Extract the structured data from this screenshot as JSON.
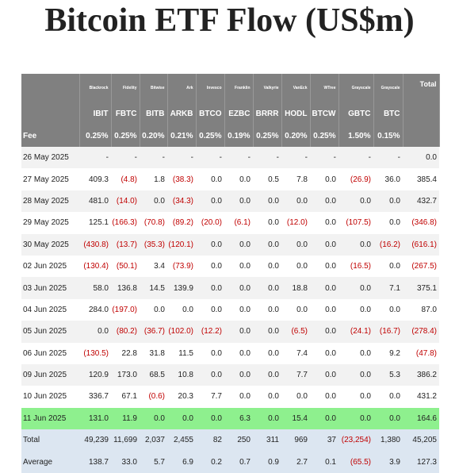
{
  "title": "Bitcoin ETF Flow (US$m)",
  "table": {
    "issuers": [
      "Blackrock",
      "Fidelity",
      "Bitwise",
      "Ark",
      "Invesco",
      "Franklin",
      "Valkyrie",
      "VanEck",
      "WTree",
      "Grayscale",
      "Grayscale"
    ],
    "total_label": "Total",
    "tickers": [
      "IBIT",
      "FBTC",
      "BITB",
      "ARKB",
      "BTCO",
      "EZBC",
      "BRRR",
      "HODL",
      "BTCW",
      "GBTC",
      "BTC"
    ],
    "fee_row": [
      "Fee",
      "0.25%",
      "0.25%",
      "0.20%",
      "0.21%",
      "0.25%",
      "0.19%",
      "0.25%",
      "0.20%",
      "0.25%",
      "1.50%",
      "0.15%"
    ],
    "rows": [
      [
        "26 May 2025",
        "-",
        "-",
        "-",
        "-",
        "-",
        "-",
        "-",
        "-",
        "-",
        "-",
        "-",
        "0.0"
      ],
      [
        "27 May 2025",
        "409.3",
        "(4.8)",
        "1.8",
        "(38.3)",
        "0.0",
        "0.0",
        "0.5",
        "7.8",
        "0.0",
        "(26.9)",
        "36.0",
        "385.4"
      ],
      [
        "28 May 2025",
        "481.0",
        "(14.0)",
        "0.0",
        "(34.3)",
        "0.0",
        "0.0",
        "0.0",
        "0.0",
        "0.0",
        "0.0",
        "0.0",
        "432.7"
      ],
      [
        "29 May 2025",
        "125.1",
        "(166.3)",
        "(70.8)",
        "(89.2)",
        "(20.0)",
        "(6.1)",
        "0.0",
        "(12.0)",
        "0.0",
        "(107.5)",
        "0.0",
        "(346.8)"
      ],
      [
        "30 May 2025",
        "(430.8)",
        "(13.7)",
        "(35.3)",
        "(120.1)",
        "0.0",
        "0.0",
        "0.0",
        "0.0",
        "0.0",
        "0.0",
        "(16.2)",
        "(616.1)"
      ],
      [
        "02 Jun 2025",
        "(130.4)",
        "(50.1)",
        "3.4",
        "(73.9)",
        "0.0",
        "0.0",
        "0.0",
        "0.0",
        "0.0",
        "(16.5)",
        "0.0",
        "(267.5)"
      ],
      [
        "03 Jun 2025",
        "58.0",
        "136.8",
        "14.5",
        "139.9",
        "0.0",
        "0.0",
        "0.0",
        "18.8",
        "0.0",
        "0.0",
        "7.1",
        "375.1"
      ],
      [
        "04 Jun 2025",
        "284.0",
        "(197.0)",
        "0.0",
        "0.0",
        "0.0",
        "0.0",
        "0.0",
        "0.0",
        "0.0",
        "0.0",
        "0.0",
        "87.0"
      ],
      [
        "05 Jun 2025",
        "0.0",
        "(80.2)",
        "(36.7)",
        "(102.0)",
        "(12.2)",
        "0.0",
        "0.0",
        "(6.5)",
        "0.0",
        "(24.1)",
        "(16.7)",
        "(278.4)"
      ],
      [
        "06 Jun 2025",
        "(130.5)",
        "22.8",
        "31.8",
        "11.5",
        "0.0",
        "0.0",
        "0.0",
        "7.4",
        "0.0",
        "0.0",
        "9.2",
        "(47.8)"
      ],
      [
        "09 Jun 2025",
        "120.9",
        "173.0",
        "68.5",
        "10.8",
        "0.0",
        "0.0",
        "0.0",
        "7.7",
        "0.0",
        "0.0",
        "5.3",
        "386.2"
      ],
      [
        "10 Jun 2025",
        "336.7",
        "67.1",
        "(0.6)",
        "20.3",
        "7.7",
        "0.0",
        "0.0",
        "0.0",
        "0.0",
        "0.0",
        "0.0",
        "431.2"
      ],
      [
        "11 Jun 2025",
        "131.0",
        "11.9",
        "0.0",
        "0.0",
        "0.0",
        "6.3",
        "0.0",
        "15.4",
        "0.0",
        "0.0",
        "0.0",
        "164.6"
      ],
      [
        "Total",
        "49,239",
        "11,699",
        "2,037",
        "2,455",
        "82",
        "250",
        "311",
        "969",
        "37",
        "(23,254)",
        "1,380",
        "45,205"
      ],
      [
        "Average",
        "138.7",
        "33.0",
        "5.7",
        "6.9",
        "0.2",
        "0.7",
        "0.9",
        "2.7",
        "0.1",
        "(65.5)",
        "3.9",
        "127.3"
      ]
    ]
  }
}
